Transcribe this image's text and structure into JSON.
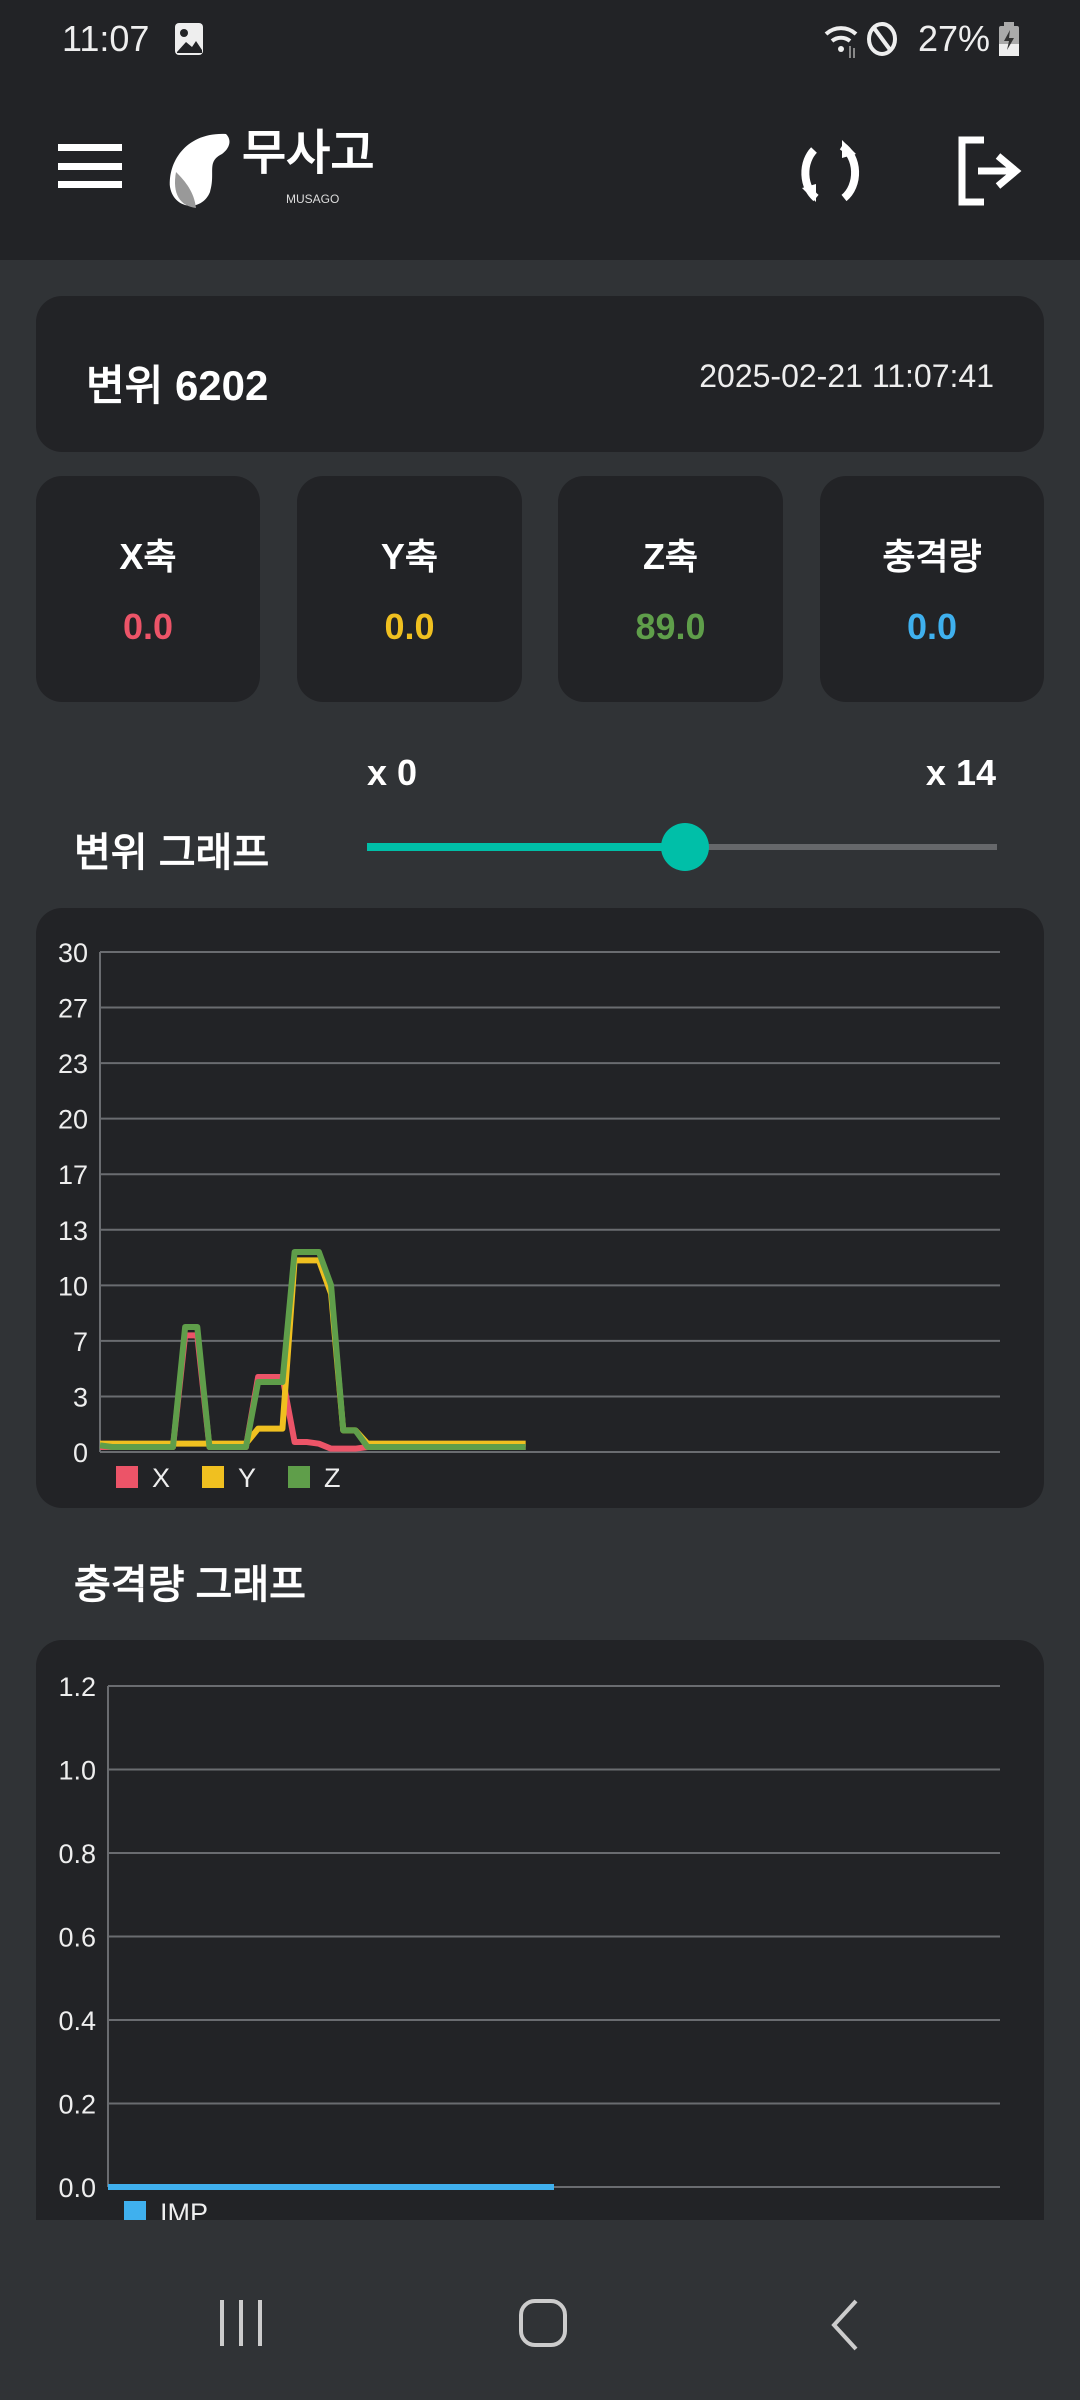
{
  "status_bar": {
    "time": "11:07",
    "battery": "27%",
    "icons": [
      "gallery-icon",
      "wifi-icon",
      "do-not-disturb-icon",
      "battery-charging-icon"
    ]
  },
  "header": {
    "logo_text": "무사고",
    "logo_subtext": "MUSAGO",
    "icons": [
      "menu-icon",
      "refresh-icon",
      "logout-icon"
    ]
  },
  "device": {
    "title": "변위 6202",
    "timestamp": "2025-02-21 11:07:41"
  },
  "metrics": [
    {
      "label": "X축",
      "value": "0.0",
      "color": "#ec5468"
    },
    {
      "label": "Y축",
      "value": "0.0",
      "color": "#f0c020"
    },
    {
      "label": "Z축",
      "value": "89.0",
      "color": "#5f9e4a"
    },
    {
      "label": "충격량",
      "value": "0.0",
      "color": "#3fb0ee"
    }
  ],
  "displacement_section": {
    "title": "변위 그래프",
    "slider_min_label": "x 0",
    "slider_max_label": "x 14",
    "slider_value_fraction": 0.5,
    "accent": "#00bfa8"
  },
  "impact_section": {
    "title": "충격량 그래프"
  },
  "chart_data": [
    {
      "type": "line",
      "ylim": [
        0,
        30
      ],
      "yticks": [
        "0",
        "3",
        "7",
        "10",
        "13",
        "17",
        "20",
        "23",
        "27",
        "30"
      ],
      "xlim": [
        0,
        74
      ],
      "grid": true,
      "legend": "bottom-left",
      "series": [
        {
          "name": "X",
          "color": "#ec5468",
          "values": [
            0.3,
            0.3,
            0.3,
            0.3,
            0.3,
            0.3,
            0.3,
            7.0,
            7.0,
            0.3,
            0.3,
            0.3,
            0.3,
            4.5,
            4.5,
            4.5,
            0.6,
            0.6,
            0.5,
            0.2,
            0.2,
            0.2,
            0.3,
            0.3,
            0.3,
            0.3,
            0.3,
            0.3,
            0.3,
            0.3,
            0.3,
            0.3,
            0.3,
            0.3,
            0.3,
            0.3
          ]
        },
        {
          "name": "Y",
          "color": "#f0c020",
          "values": [
            0.5,
            0.5,
            0.5,
            0.5,
            0.5,
            0.5,
            0.5,
            0.5,
            0.5,
            0.5,
            0.5,
            0.5,
            0.5,
            1.4,
            1.4,
            1.4,
            11.5,
            11.5,
            11.5,
            9.5,
            1.3,
            1.3,
            0.5,
            0.5,
            0.5,
            0.5,
            0.5,
            0.5,
            0.5,
            0.5,
            0.5,
            0.5,
            0.5,
            0.5,
            0.5,
            0.5
          ]
        },
        {
          "name": "Z",
          "color": "#5f9e4a",
          "values": [
            0.4,
            0.3,
            0.3,
            0.3,
            0.3,
            0.3,
            0.3,
            7.5,
            7.5,
            0.3,
            0.3,
            0.3,
            0.3,
            4.2,
            4.2,
            4.2,
            12.0,
            12.0,
            12.0,
            10.0,
            1.3,
            1.3,
            0.3,
            0.3,
            0.3,
            0.3,
            0.3,
            0.3,
            0.3,
            0.3,
            0.3,
            0.3,
            0.3,
            0.3,
            0.3,
            0.3
          ]
        }
      ]
    },
    {
      "type": "line",
      "ylim": [
        0,
        1.2
      ],
      "yticks": [
        "0.0",
        "0.2",
        "0.4",
        "0.6",
        "0.8",
        "1.0",
        "1.2"
      ],
      "xlim": [
        0,
        74
      ],
      "grid": true,
      "legend": "bottom-left",
      "series": [
        {
          "name": "IMP",
          "color": "#3fb0ee",
          "values": [
            0,
            0,
            0,
            0,
            0,
            0,
            0,
            0,
            0,
            0,
            0,
            0,
            0,
            0,
            0,
            0,
            0,
            0,
            0,
            0,
            0,
            0,
            0,
            0,
            0,
            0,
            0,
            0,
            0,
            0,
            0,
            0,
            0,
            0,
            0,
            0,
            0,
            0
          ]
        }
      ]
    }
  ],
  "nav_bar": {
    "icons": [
      "recent-apps-icon",
      "home-icon",
      "back-icon"
    ]
  }
}
